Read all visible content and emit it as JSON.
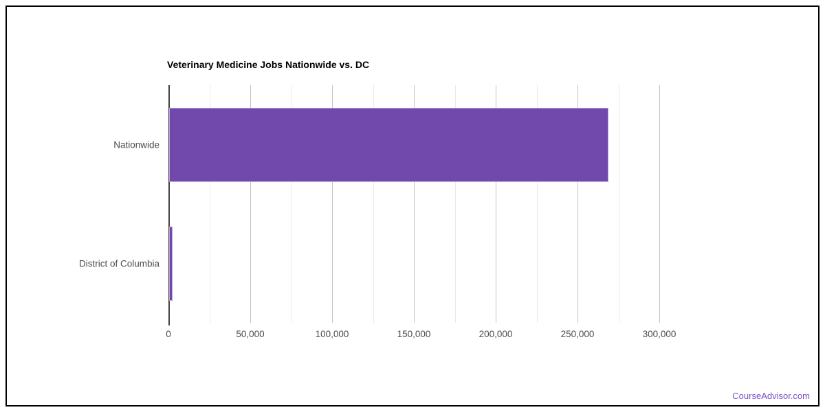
{
  "chart_data": {
    "type": "bar",
    "orientation": "horizontal",
    "title": "Veterinary Medicine Jobs Nationwide vs. DC",
    "categories": [
      "Nationwide",
      "District of Columbia"
    ],
    "values": [
      268500,
      1900
    ],
    "xlabel": "",
    "ylabel": "",
    "xlim": [
      0,
      300000
    ],
    "x_major_ticks": [
      0,
      50000,
      100000,
      150000,
      200000,
      250000,
      300000
    ],
    "x_major_tick_labels": [
      "0",
      "50,000",
      "100,000",
      "150,000",
      "200,000",
      "250,000",
      "300,000"
    ],
    "x_minor_tick_step": 25000,
    "grid": true,
    "legend": "none"
  },
  "colors": {
    "bar_fill": "#7148AC",
    "bar_stroke": "#b9a4da",
    "grid_major": "#c2c2c2",
    "grid_minor": "#e9e9e9",
    "axis_line": "#424242",
    "label_text": "#4a4a4a",
    "title_text": "#000000",
    "frame_border": "#000000",
    "watermark_text": "#7b4ec6"
  },
  "watermark": {
    "text": "CourseAdvisor.com"
  }
}
